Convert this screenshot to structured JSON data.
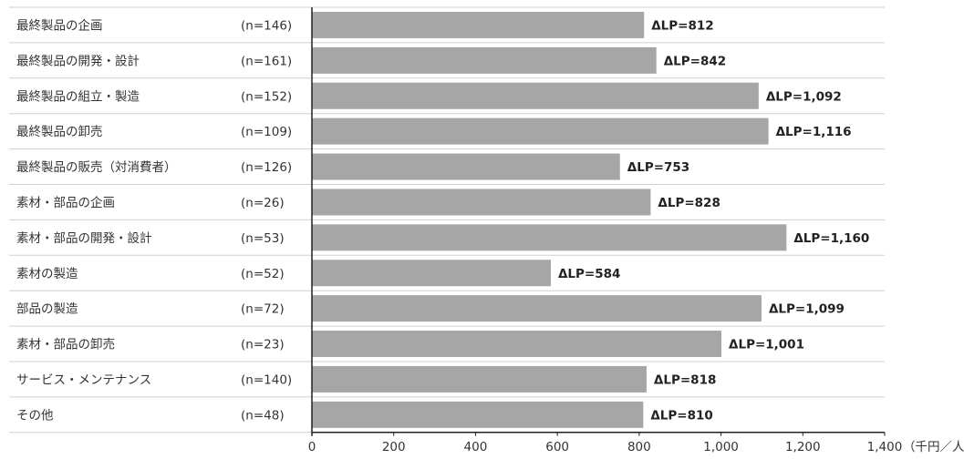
{
  "chart_data": {
    "type": "bar",
    "orientation": "horizontal",
    "categories": [
      "最終製品の企画",
      "最終製品の開発・設計",
      "最終製品の組立・製造",
      "最終製品の卸売",
      "最終製品の販売（対消費者）",
      "素材・部品の企画",
      "素材・部品の開発・設計",
      "素材の製造",
      "部品の製造",
      "素材・部品の卸売",
      "サービス・メンテナンス",
      "その他"
    ],
    "sample_sizes": [
      "(n=146)",
      "(n=161)",
      "(n=152)",
      "(n=109)",
      "(n=126)",
      "(n=26)",
      "(n=53)",
      "(n=52)",
      "(n=72)",
      "(n=23)",
      "(n=140)",
      "(n=48)"
    ],
    "values": [
      812,
      842,
      1092,
      1116,
      753,
      828,
      1160,
      584,
      1099,
      1001,
      818,
      810
    ],
    "value_labels": [
      "ΔLP=812",
      "ΔLP=842",
      "ΔLP=1,092",
      "ΔLP=1,116",
      "ΔLP=753",
      "ΔLP=828",
      "ΔLP=1,160",
      "ΔLP=584",
      "ΔLP=1,099",
      "ΔLP=1,001",
      "ΔLP=818",
      "ΔLP=810"
    ],
    "xlim": [
      0,
      1400
    ],
    "x_ticks": [
      0,
      200,
      400,
      600,
      800,
      1000,
      1200,
      1400
    ],
    "x_tick_labels": [
      "0",
      "200",
      "400",
      "600",
      "800",
      "1,000",
      "1,200",
      "1,400"
    ],
    "x_unit": "（千円／人）",
    "title": "",
    "xlabel": "",
    "ylabel": "",
    "grid": "row separators",
    "bar_color": "#a6a6a6",
    "separator_color": "#d0d0d0",
    "axis_color": "#222222"
  }
}
